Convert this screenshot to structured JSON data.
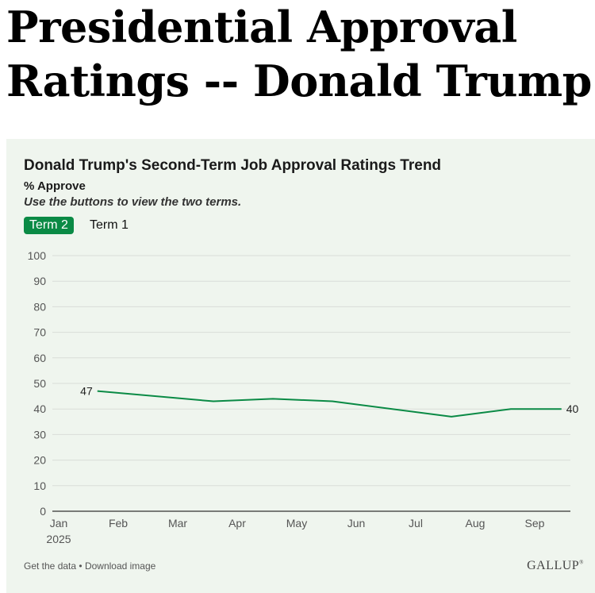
{
  "page_title": "Presidential Approval Ratings -- Donald Trump",
  "footer": {
    "get_data": "Get the data",
    "separator": "•",
    "download_image": "Download image",
    "logo": "GALLUP"
  },
  "buttons": {
    "term2": "Term 2",
    "term1": "Term 1"
  },
  "colors": {
    "line": "#0a8a45",
    "panel_bg": "#eff5ee",
    "active_button": "#0a8a45"
  },
  "chart_data": {
    "type": "line",
    "title": "Donald Trump's Second-Term Job Approval Ratings Trend",
    "subtitle": "% Approve",
    "instruction": "Use the buttons to view the two terms.",
    "xlabel": "",
    "ylabel": "",
    "ylim": [
      0,
      100
    ],
    "yticks": [
      0,
      10,
      20,
      30,
      40,
      50,
      60,
      70,
      80,
      90,
      100
    ],
    "xlim": [
      0,
      8.6
    ],
    "xticks": [
      {
        "label": "Jan",
        "sublabel": "2025",
        "pos": 0
      },
      {
        "label": "Feb",
        "sublabel": "",
        "pos": 1
      },
      {
        "label": "Mar",
        "sublabel": "",
        "pos": 2
      },
      {
        "label": "Apr",
        "sublabel": "",
        "pos": 3
      },
      {
        "label": "May",
        "sublabel": "",
        "pos": 4
      },
      {
        "label": "Jun",
        "sublabel": "",
        "pos": 5
      },
      {
        "label": "Jul",
        "sublabel": "",
        "pos": 6
      },
      {
        "label": "Aug",
        "sublabel": "",
        "pos": 7
      },
      {
        "label": "Sep",
        "sublabel": "",
        "pos": 8
      }
    ],
    "series": [
      {
        "name": "% Approve",
        "x": [
          0.65,
          2.6,
          3.6,
          4.6,
          6.6,
          7.6,
          8.45
        ],
        "values": [
          47,
          43,
          44,
          43,
          37,
          40,
          40
        ]
      }
    ],
    "annotations": [
      {
        "point_index": 0,
        "text": "47",
        "side": "left"
      },
      {
        "point_index": 6,
        "text": "40",
        "side": "right"
      }
    ],
    "grid": true
  }
}
